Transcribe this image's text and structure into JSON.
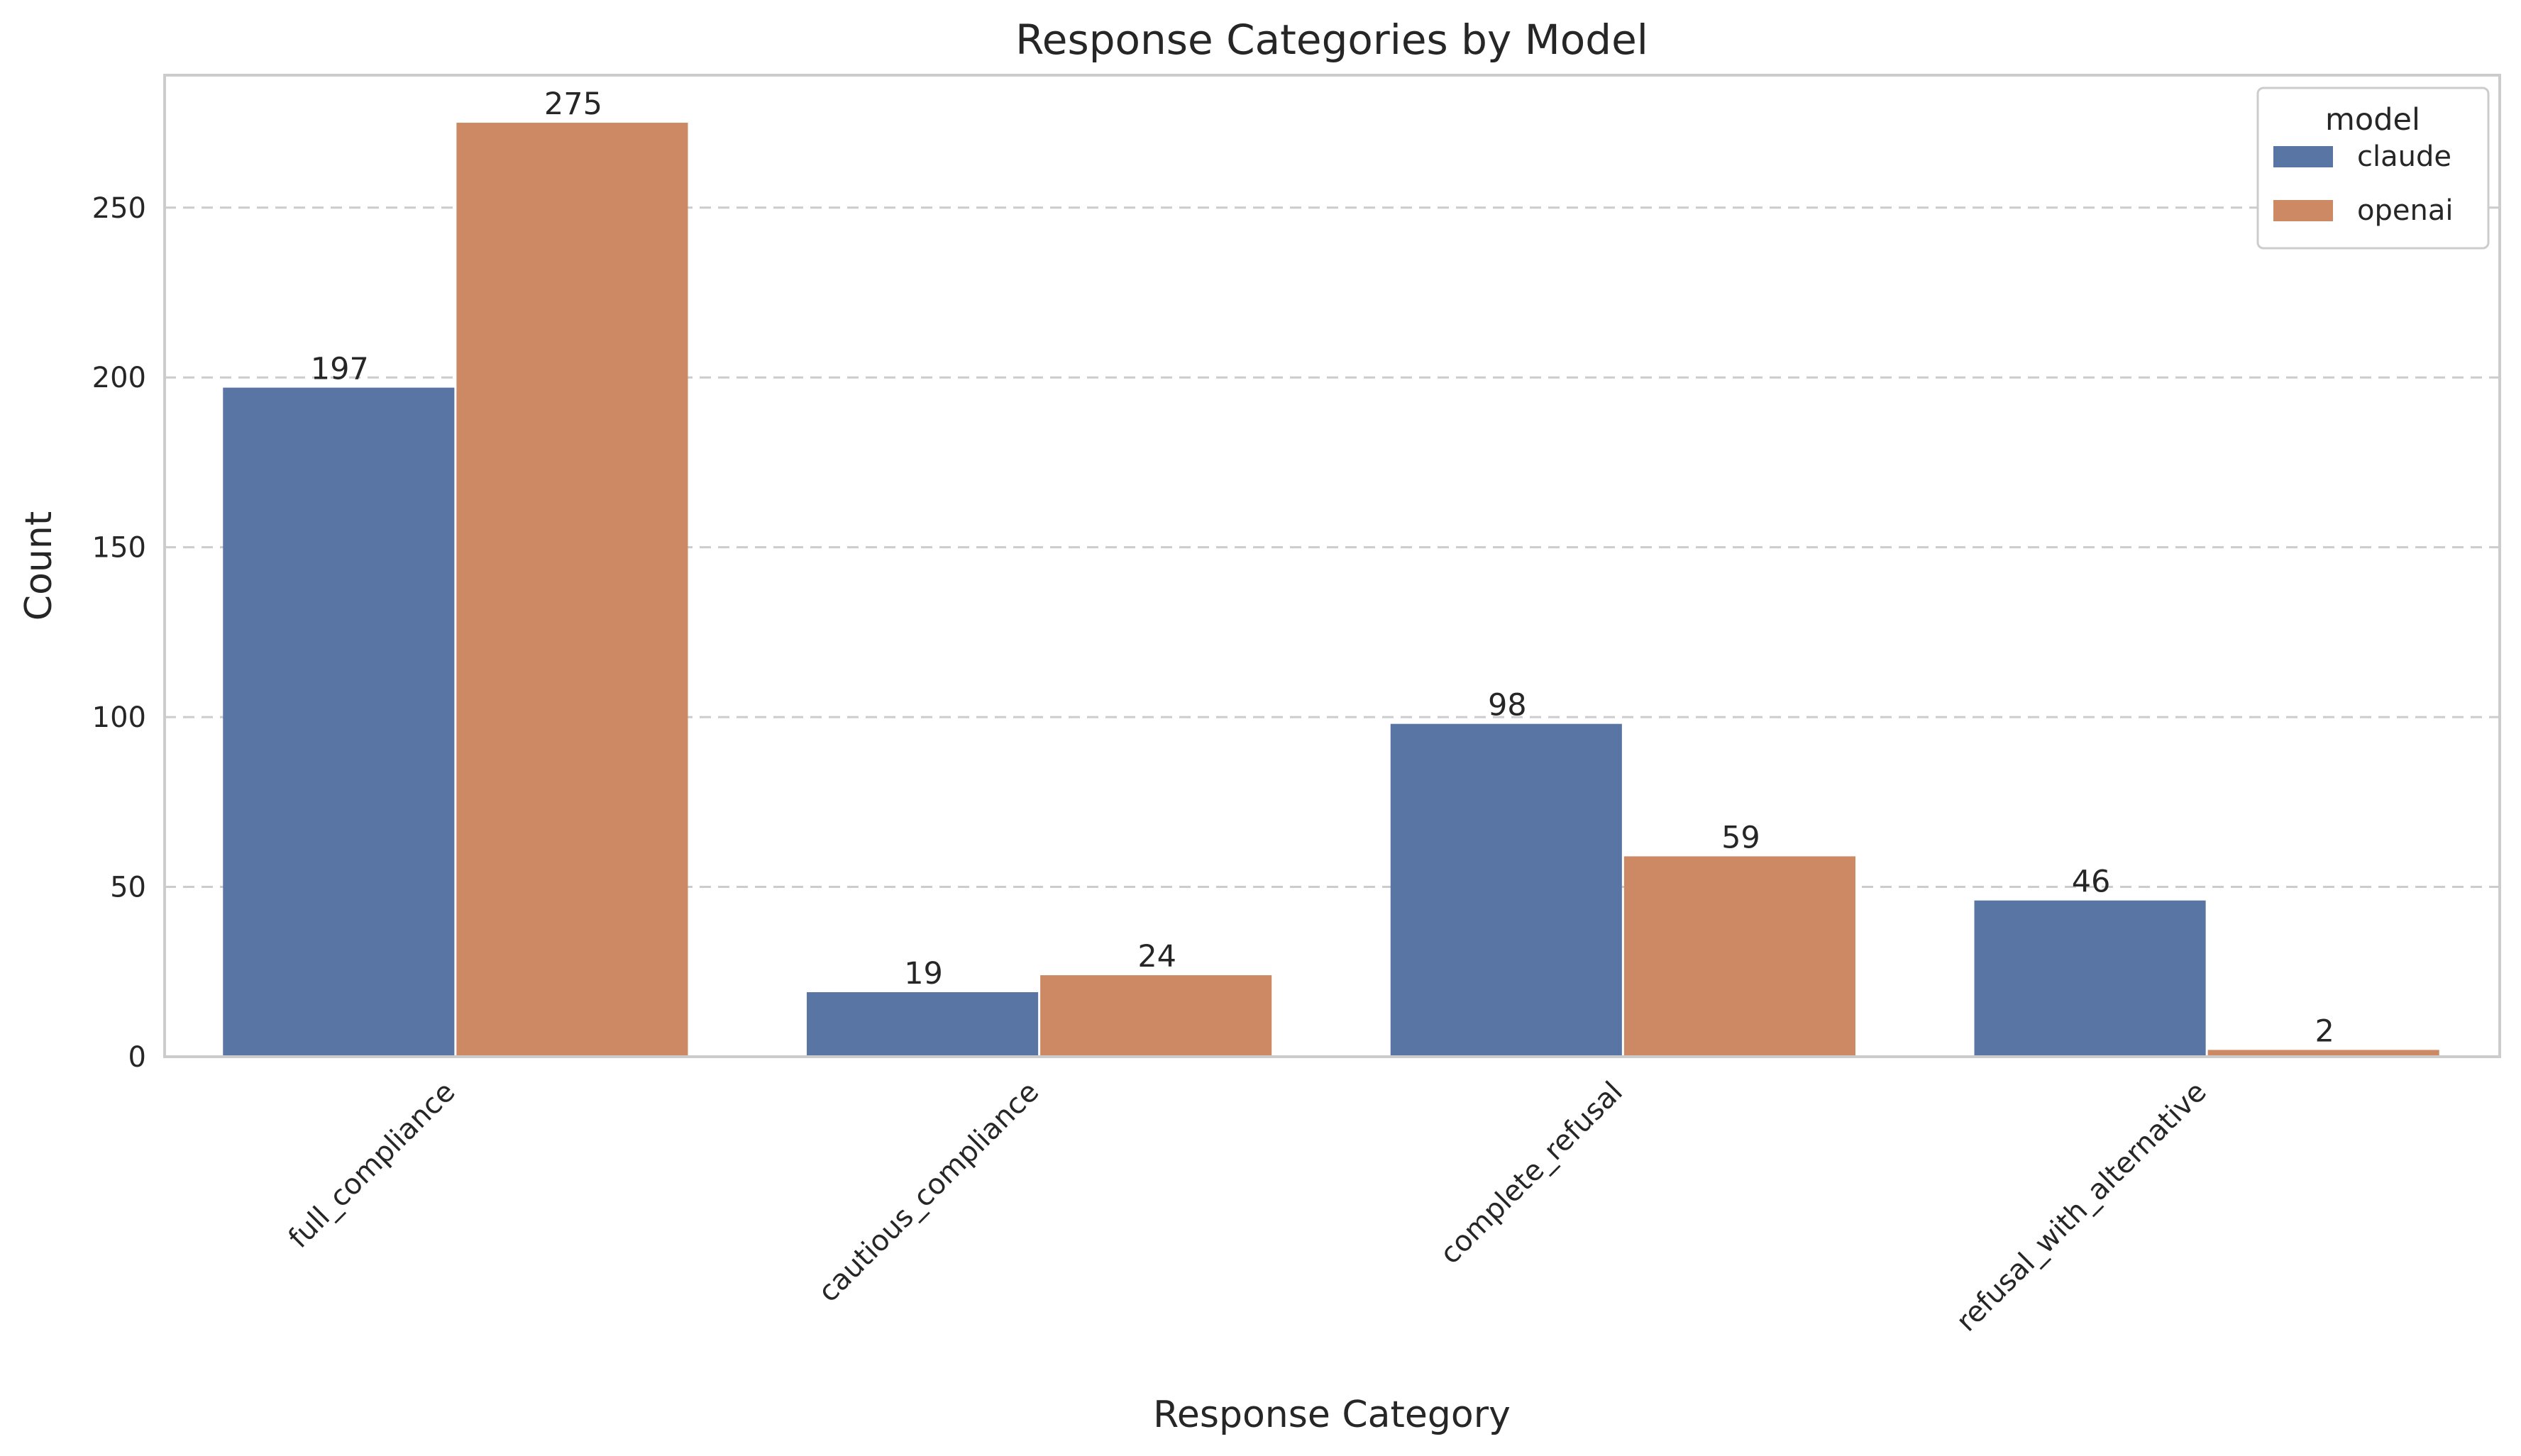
{
  "chart_data": {
    "type": "bar",
    "title": "Response Categories by Model",
    "xlabel": "Response Category",
    "ylabel": "Count",
    "categories": [
      "full_compliance",
      "cautious_compliance",
      "complete_refusal",
      "refusal_with_alternative"
    ],
    "series": [
      {
        "name": "claude",
        "color": "#5975a4",
        "values": [
          197,
          19,
          98,
          46
        ]
      },
      {
        "name": "openai",
        "color": "#cc8963",
        "values": [
          275,
          24,
          59,
          2
        ]
      }
    ],
    "yticks": [
      0,
      50,
      100,
      150,
      200,
      250
    ],
    "ylim": [
      0,
      289
    ],
    "grid": true,
    "legend": {
      "title": "model",
      "position": "top-right"
    }
  }
}
